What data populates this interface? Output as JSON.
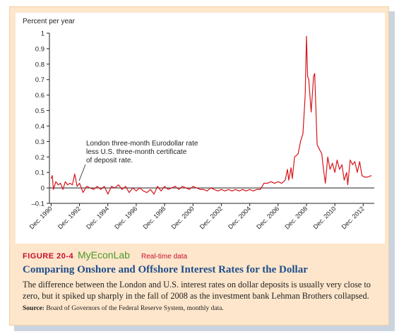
{
  "chart_data": {
    "type": "line",
    "y_label": "Percent per year",
    "annotation": [
      "London three-month Eurodollar rate",
      "less U.S. three-month certificate",
      "of deposit rate."
    ],
    "color": "#d7141a",
    "x": [
      1990.92,
      1991.0,
      1991.08,
      1991.25,
      1991.42,
      1991.58,
      1991.75,
      1991.92,
      1992.08,
      1992.25,
      1992.42,
      1992.58,
      1992.75,
      1992.92,
      1993.17,
      1993.42,
      1993.67,
      1993.92,
      1994.17,
      1994.42,
      1994.67,
      1994.92,
      1995.17,
      1995.42,
      1995.67,
      1995.92,
      1996.17,
      1996.42,
      1996.67,
      1996.92,
      1997.17,
      1997.42,
      1997.67,
      1997.92,
      1998.17,
      1998.42,
      1998.67,
      1998.92,
      1999.17,
      1999.42,
      1999.67,
      1999.92,
      2000.17,
      2000.42,
      2000.67,
      2000.92,
      2001.17,
      2001.42,
      2001.67,
      2001.92,
      2002.17,
      2002.42,
      2002.67,
      2002.92,
      2003.17,
      2003.42,
      2003.67,
      2003.92,
      2004.17,
      2004.42,
      2004.67,
      2004.92,
      2005.17,
      2005.42,
      2005.67,
      2005.92,
      2006.17,
      2006.42,
      2006.67,
      2006.92,
      2007.17,
      2007.42,
      2007.58,
      2007.67,
      2007.83,
      2007.92,
      2008.08,
      2008.33,
      2008.5,
      2008.67,
      2008.83,
      2008.92,
      2009.0,
      2009.08,
      2009.25,
      2009.42,
      2009.5,
      2009.67,
      2009.83,
      2010.0,
      2010.08,
      2010.25,
      2010.42,
      2010.58,
      2010.75,
      2010.92,
      2011.08,
      2011.25,
      2011.42,
      2011.58,
      2011.75,
      2011.83,
      2012.0,
      2012.17,
      2012.33,
      2012.5,
      2012.67,
      2012.83,
      2013.0,
      2013.25,
      2013.5
    ],
    "values": [
      0.06,
      0.08,
      -0.01,
      0.04,
      0.02,
      0.03,
      -0.01,
      0.04,
      0.02,
      0.03,
      0.02,
      0.09,
      0.01,
      0.03,
      -0.03,
      0.01,
      0.0,
      -0.01,
      0.01,
      -0.01,
      0.01,
      -0.04,
      0.01,
      0.0,
      0.02,
      -0.01,
      0.01,
      -0.03,
      0.0,
      -0.02,
      0.0,
      -0.02,
      -0.03,
      -0.01,
      -0.04,
      0.01,
      -0.02,
      0.01,
      -0.01,
      0.0,
      0.01,
      -0.01,
      0.01,
      0.0,
      -0.01,
      0.01,
      0.0,
      -0.01,
      -0.01,
      -0.02,
      0.0,
      -0.01,
      -0.02,
      -0.01,
      -0.02,
      -0.01,
      -0.02,
      -0.01,
      -0.02,
      -0.01,
      -0.02,
      -0.01,
      -0.02,
      -0.01,
      -0.01,
      0.03,
      0.03,
      0.04,
      0.03,
      0.04,
      0.03,
      0.05,
      0.12,
      0.05,
      0.13,
      0.06,
      0.2,
      0.22,
      0.3,
      0.35,
      0.6,
      0.98,
      0.72,
      0.7,
      0.49,
      0.72,
      0.74,
      0.28,
      0.25,
      0.22,
      0.15,
      0.03,
      0.2,
      0.12,
      0.16,
      0.1,
      0.18,
      0.12,
      0.15,
      0.05,
      0.1,
      0.02,
      0.18,
      0.15,
      0.17,
      0.1,
      0.17,
      0.08,
      0.07,
      0.07,
      0.08
    ],
    "xlim": [
      1990.8,
      2013.7
    ],
    "xticks": [
      {
        "value": 1990.92,
        "label": "Dec. 1990"
      },
      {
        "value": 1992.92,
        "label": "Dec. 1992"
      },
      {
        "value": 1994.92,
        "label": "Dec. 1994"
      },
      {
        "value": 1996.92,
        "label": "Dec. 1996"
      },
      {
        "value": 1998.92,
        "label": "Dec. 1998"
      },
      {
        "value": 2000.92,
        "label": "Dec. 2000"
      },
      {
        "value": 2002.92,
        "label": "Dec. 2002"
      },
      {
        "value": 2004.92,
        "label": "Dec. 2004"
      },
      {
        "value": 2006.92,
        "label": "Dec. 2006"
      },
      {
        "value": 2008.92,
        "label": "Dec. 2008"
      },
      {
        "value": 2010.92,
        "label": "Dec. 2010"
      },
      {
        "value": 2012.92,
        "label": "Dec. 2012"
      }
    ],
    "ylim": [
      -0.1,
      1
    ],
    "yticks": [
      1,
      0.9,
      0.8,
      0.7,
      0.6,
      0.5,
      0.4,
      0.3,
      0.2,
      0.1,
      0,
      {
        "value": -0.1,
        "label": "–0.1"
      }
    ]
  },
  "caption": {
    "number": "FIGURE 20-4",
    "brand": "MyEconLab",
    "tag": "Real-time data",
    "title": "Comparing Onshore and Offshore Interest Rates for the Dollar",
    "description": "The difference between the London and U.S. interest rates on dollar deposits is usually very close to zero, but it spiked up sharply in the fall of 2008 as the investment bank Lehman Brothers collapsed.",
    "source_label": "Source:",
    "source": "Board of Governors of the Federal Reserve System, monthly data."
  }
}
